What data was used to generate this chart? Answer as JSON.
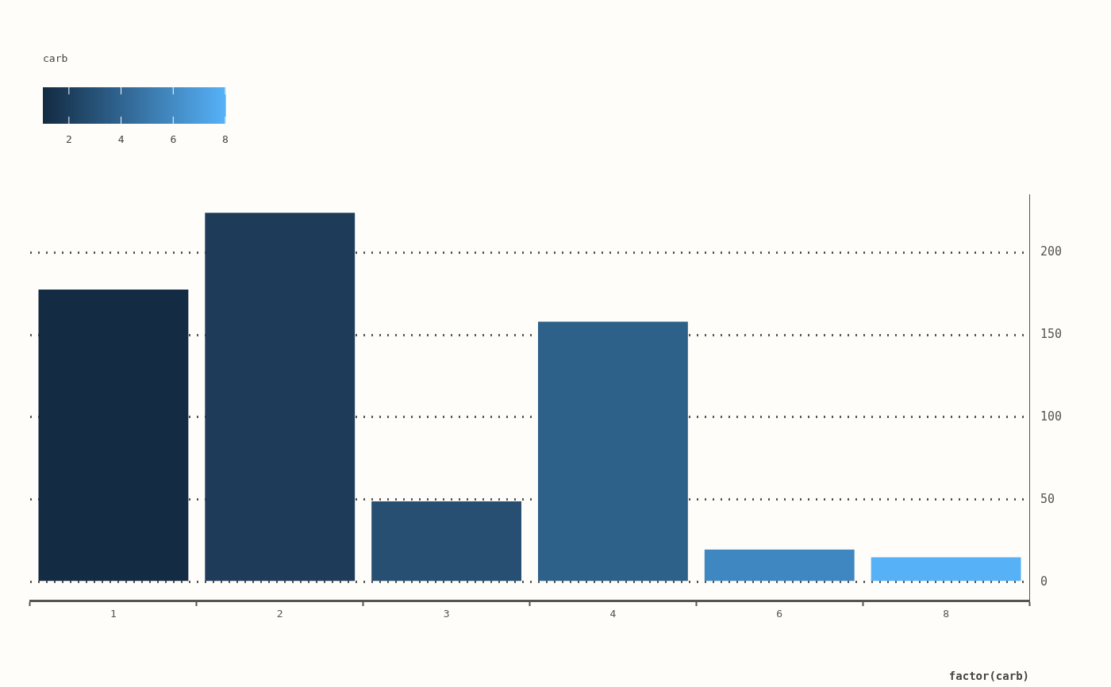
{
  "chart_data": {
    "type": "bar",
    "xlabel": "factor(carb)",
    "clabel": "carb",
    "clim": [
      1,
      8
    ],
    "cticks": [
      2,
      4,
      6,
      8
    ],
    "categories": [
      "1",
      "2",
      "3",
      "4",
      "6",
      "8"
    ],
    "values": [
      177.4,
      224,
      48.9,
      157.9,
      19.7,
      15
    ],
    "colors": [
      "#132b43",
      "#1e3c5a",
      "#264f71",
      "#2e6189",
      "#3f87c0",
      "#56b1f7"
    ],
    "ylim": [
      -11.2,
      235.2
    ],
    "yticks": [
      0,
      50,
      100,
      150,
      200
    ],
    "grid": "y",
    "legend": false
  }
}
